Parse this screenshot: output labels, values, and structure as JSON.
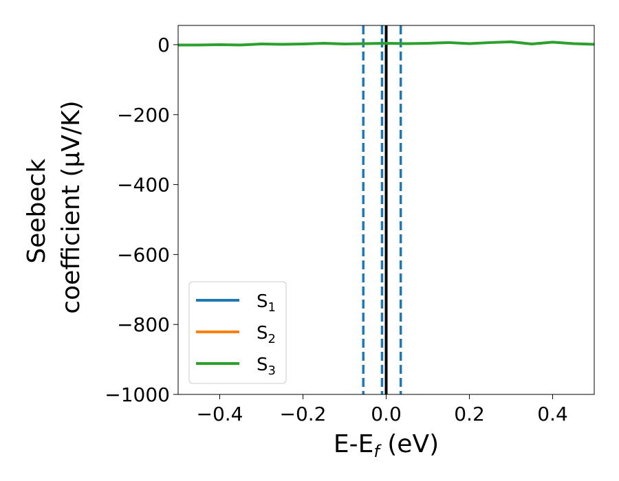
{
  "chart_data": {
    "type": "line",
    "xlabel": "E-E",
    "xlabel_sub": "f",
    "xlabel_unit": " (eV)",
    "ylabel_line1": "Seebeck",
    "ylabel_line2": "coefficient  (μV/K)",
    "xlim": [
      -0.5,
      0.5
    ],
    "ylim": [
      -1000,
      55
    ],
    "xticks": [
      -0.4,
      -0.2,
      0.0,
      0.2,
      0.4
    ],
    "xtick_labels": [
      "−0.4",
      "−0.2",
      "0.0",
      "0.2",
      "0.4"
    ],
    "yticks": [
      0,
      -200,
      -400,
      -600,
      -800,
      -1000
    ],
    "ytick_labels": [
      "0",
      "−200",
      "−400",
      "−600",
      "−800",
      "−1000"
    ],
    "grid": false,
    "legend_position": "bottom-left",
    "series": [
      {
        "name": "S",
        "sub": "1",
        "color": "#1f77b4",
        "x": [],
        "y": []
      },
      {
        "name": "S",
        "sub": "2",
        "color": "#ff7f0e",
        "x": [],
        "y": []
      },
      {
        "name": "S",
        "sub": "3",
        "color": "#2ca02c",
        "x": [
          -0.5,
          -0.45,
          -0.4,
          -0.35,
          -0.3,
          -0.25,
          -0.2,
          -0.15,
          -0.1,
          -0.05,
          0.0,
          0.05,
          0.1,
          0.15,
          0.2,
          0.25,
          0.3,
          0.35,
          0.4,
          0.45,
          0.5
        ],
        "y": [
          -1,
          -1,
          0,
          -1,
          2,
          1,
          2,
          4,
          2,
          3,
          4,
          3,
          4,
          6,
          3,
          6,
          8,
          2,
          7,
          3,
          1
        ]
      }
    ],
    "vlines": [
      {
        "x": -0.055,
        "style": "dashed",
        "color": "#1f77b4"
      },
      {
        "x": -0.01,
        "style": "dashed",
        "color": "#1f77b4"
      },
      {
        "x": 0.0,
        "style": "solid",
        "color": "#000000"
      },
      {
        "x": 0.035,
        "style": "dashed",
        "color": "#1f77b4"
      }
    ]
  }
}
